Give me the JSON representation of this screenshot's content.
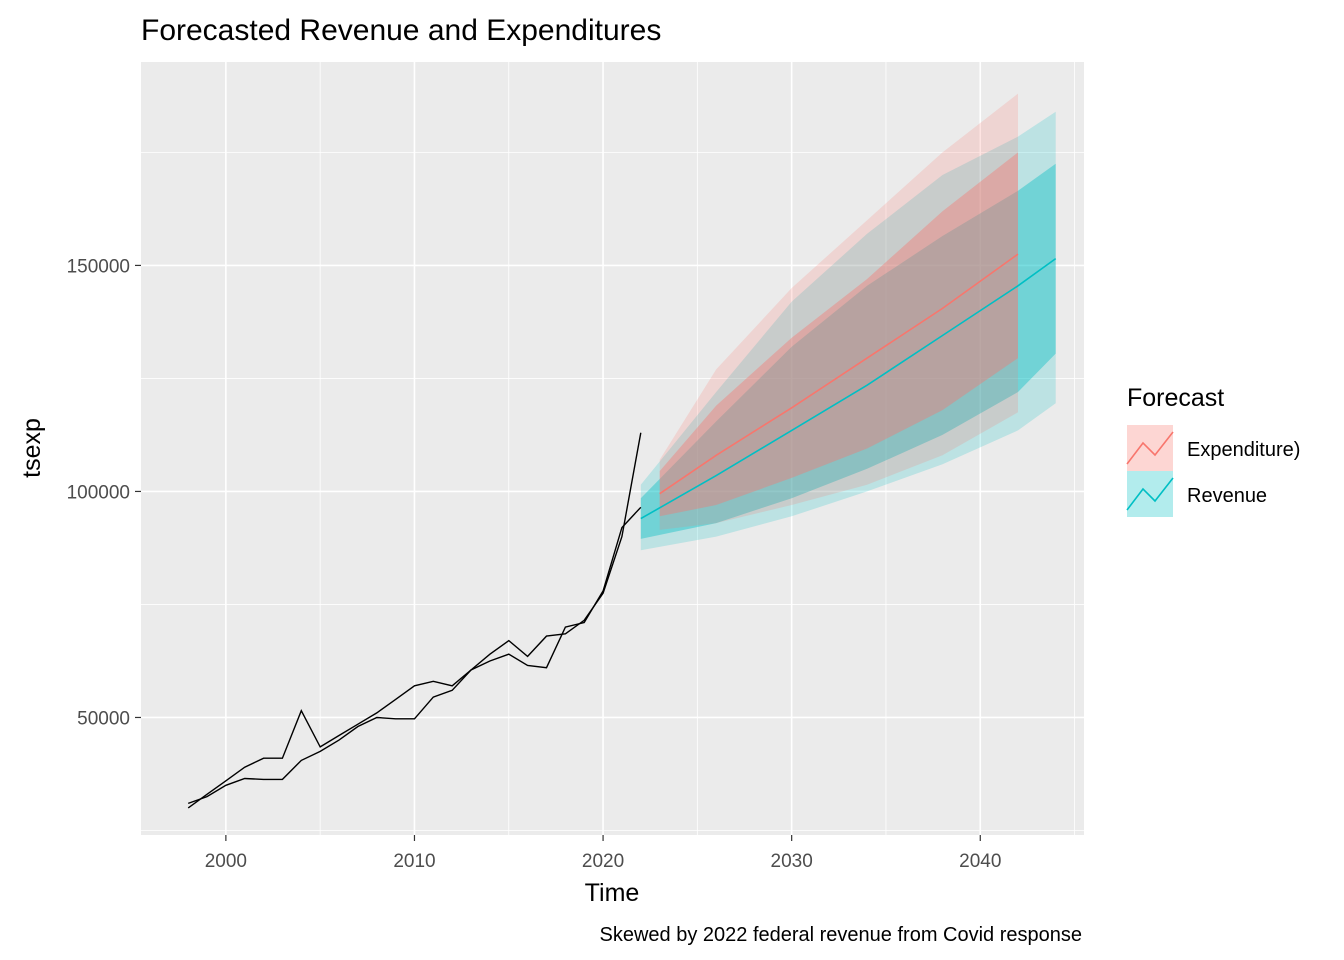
{
  "chart_data": {
    "type": "line",
    "title": "Forecasted Revenue and Expenditures",
    "xlabel": "Time",
    "ylabel": "tsexp",
    "caption": "Skewed by 2022 federal revenue from Covid response",
    "xlim": [
      1995.5,
      2045.5
    ],
    "ylim": [
      24000,
      195000
    ],
    "x_ticks": [
      2000,
      2010,
      2020,
      2030,
      2040
    ],
    "x_tick_labels": [
      "2000",
      "2010",
      "2020",
      "2030",
      "2040"
    ],
    "y_ticks": [
      50000,
      100000,
      150000
    ],
    "y_tick_labels": [
      "50000",
      "100000",
      "150000"
    ],
    "grid": true,
    "legend": {
      "title": "Forecast",
      "position": "right",
      "entries": [
        {
          "label": "Expenditure)",
          "color": "#F8766D"
        },
        {
          "label": "Revenue",
          "color": "#00BFC4"
        }
      ]
    },
    "historical": [
      {
        "x": [
          1998,
          1999,
          2000,
          2001,
          2002,
          2003,
          2004,
          2005,
          2006,
          2007,
          2008,
          2009,
          2010,
          2011,
          2012,
          2013,
          2014,
          2015,
          2016,
          2017,
          2018,
          2019,
          2020,
          2021,
          2022
        ],
        "y": [
          31000,
          32500,
          35000,
          36500,
          36300,
          36300,
          40500,
          42500,
          45000,
          48000,
          50000,
          49700,
          49700,
          54500,
          56000,
          60500,
          62500,
          64000,
          61500,
          61000,
          70000,
          71000,
          78000,
          92000,
          96500
        ]
      },
      {
        "x": [
          1998,
          1999,
          2000,
          2001,
          2002,
          2003,
          2004,
          2005,
          2006,
          2007,
          2008,
          2009,
          2010,
          2011,
          2012,
          2013,
          2014,
          2015,
          2016,
          2017,
          2018,
          2019,
          2020,
          2021,
          2022
        ],
        "y": [
          30000,
          33000,
          36000,
          39000,
          41000,
          41000,
          51500,
          43500,
          46000,
          48500,
          51000,
          54000,
          57000,
          58000,
          57000,
          60500,
          64000,
          67000,
          63500,
          68000,
          68500,
          71500,
          77500,
          90000,
          113000
        ]
      }
    ],
    "forecasts": [
      {
        "name": "Revenue",
        "color": "#00BFC4",
        "x": [
          2022,
          2026,
          2030,
          2034,
          2038,
          2042,
          2044
        ],
        "mean": [
          94000,
          103500,
          113500,
          123500,
          134500,
          145500,
          151500
        ],
        "lo80": [
          89500,
          93000,
          98500,
          105000,
          112500,
          122000,
          130500
        ],
        "hi80": [
          98500,
          115500,
          132000,
          145500,
          156500,
          166500,
          172500
        ],
        "lo95": [
          87000,
          90000,
          94500,
          100000,
          106000,
          113500,
          119500
        ],
        "hi95": [
          101500,
          122000,
          142000,
          157000,
          170000,
          178500,
          184000
        ]
      },
      {
        "name": "Expenditure)",
        "color": "#F8766D",
        "x": [
          2023,
          2026,
          2030,
          2034,
          2038,
          2042
        ],
        "mean": [
          99500,
          108000,
          118500,
          129500,
          140500,
          152500
        ],
        "lo80": [
          94500,
          97000,
          103000,
          109500,
          118000,
          129500
        ],
        "hi80": [
          104500,
          119000,
          134000,
          147000,
          162000,
          175000
        ],
        "lo95": [
          91500,
          93000,
          97000,
          101500,
          108000,
          117500
        ],
        "hi95": [
          107000,
          127000,
          145000,
          160000,
          175000,
          188000
        ]
      }
    ]
  }
}
